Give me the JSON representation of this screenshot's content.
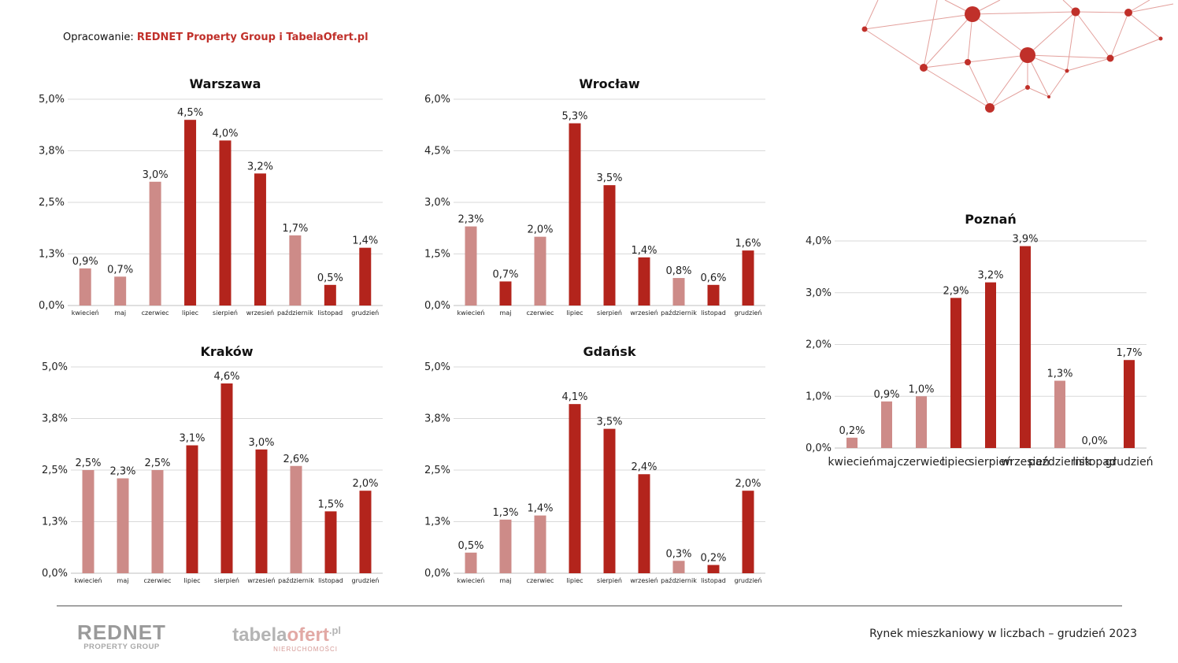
{
  "credit": {
    "prefix": "Opracowanie: ",
    "org": "REDNET Property Group i TabelaOfert.pl"
  },
  "footer": {
    "text": "Rynek mieszkaniowy w liczbach – grudzień  2023",
    "logo_rednet_big": "REDNET",
    "logo_rednet_small": "PROPERTY GROUP",
    "logo_tabela_part1": "tabela",
    "logo_tabela_part2": "ofert",
    "logo_tabela_pl": ".pl",
    "logo_tabela_small": "NIERUCHOMOŚCI"
  },
  "colors": {
    "dark": "#b3241c",
    "light": "#cd8b88",
    "accent": "#c0302a",
    "grid": "#d9d9d9"
  },
  "chart_data": [
    {
      "type": "bar",
      "title": "Warszawa",
      "categories": [
        "kwiecień",
        "maj",
        "czerwiec",
        "lipiec",
        "sierpień",
        "wrzesień",
        "październik",
        "listopad",
        "grudzień"
      ],
      "values": [
        0.9,
        0.7,
        3.0,
        4.5,
        4.0,
        3.2,
        1.7,
        0.5,
        1.4
      ],
      "labels": [
        "0,9%",
        "0,7%",
        "3,0%",
        "4,5%",
        "4,0%",
        "3,2%",
        "1,7%",
        "0,5%",
        "1,4%"
      ],
      "shade": [
        "light",
        "light",
        "light",
        "dark",
        "dark",
        "dark",
        "light",
        "dark",
        "dark"
      ],
      "yticks": [
        "0,0%",
        "1,3%",
        "2,5%",
        "3,8%",
        "5,0%"
      ],
      "ylim": [
        0,
        5.0
      ],
      "grid": true
    },
    {
      "type": "bar",
      "title": "Wrocław",
      "categories": [
        "kwiecień",
        "maj",
        "czerwiec",
        "lipiec",
        "sierpień",
        "wrzesień",
        "październik",
        "listopad",
        "grudzień"
      ],
      "values": [
        2.3,
        0.7,
        2.0,
        5.3,
        3.5,
        1.4,
        0.8,
        0.6,
        1.6
      ],
      "labels": [
        "2,3%",
        "0,7%",
        "2,0%",
        "5,3%",
        "3,5%",
        "1,4%",
        "0,8%",
        "0,6%",
        "1,6%"
      ],
      "shade": [
        "light",
        "dark",
        "light",
        "dark",
        "dark",
        "dark",
        "light",
        "dark",
        "dark"
      ],
      "yticks": [
        "0,0%",
        "1,5%",
        "3,0%",
        "4,5%",
        "6,0%"
      ],
      "ylim": [
        0,
        6.0
      ],
      "grid": true
    },
    {
      "type": "bar",
      "title": "Kraków",
      "categories": [
        "kwiecień",
        "maj",
        "czerwiec",
        "lipiec",
        "sierpień",
        "wrzesień",
        "październik",
        "listopad",
        "grudzień"
      ],
      "values": [
        2.5,
        2.3,
        2.5,
        3.1,
        4.6,
        3.0,
        2.6,
        1.5,
        2.0
      ],
      "labels": [
        "2,5%",
        "2,3%",
        "2,5%",
        "3,1%",
        "4,6%",
        "3,0%",
        "2,6%",
        "1,5%",
        "2,0%"
      ],
      "shade": [
        "light",
        "light",
        "light",
        "dark",
        "dark",
        "dark",
        "light",
        "dark",
        "dark"
      ],
      "yticks": [
        "0,0%",
        "1,3%",
        "2,5%",
        "3,8%",
        "5,0%"
      ],
      "ylim": [
        0,
        5.0
      ],
      "grid": true
    },
    {
      "type": "bar",
      "title": "Gdańsk",
      "categories": [
        "kwiecień",
        "maj",
        "czerwiec",
        "lipiec",
        "sierpień",
        "wrzesień",
        "październik",
        "listopad",
        "grudzień"
      ],
      "values": [
        0.5,
        1.3,
        1.4,
        4.1,
        3.5,
        2.4,
        0.3,
        0.2,
        2.0
      ],
      "labels": [
        "0,5%",
        "1,3%",
        "1,4%",
        "4,1%",
        "3,5%",
        "2,4%",
        "0,3%",
        "0,2%",
        "2,0%"
      ],
      "shade": [
        "light",
        "light",
        "light",
        "dark",
        "dark",
        "dark",
        "light",
        "dark",
        "dark"
      ],
      "yticks": [
        "0,0%",
        "1,3%",
        "2,5%",
        "3,8%",
        "5,0%"
      ],
      "ylim": [
        0,
        5.0
      ],
      "grid": true
    },
    {
      "type": "bar",
      "title": "Poznań",
      "categories": [
        "kwiecień",
        "maj",
        "czerwiec",
        "lipiec",
        "sierpień",
        "wrzesień",
        "październik",
        "listopad",
        "grudzień"
      ],
      "values": [
        0.2,
        0.9,
        1.0,
        2.9,
        3.2,
        3.9,
        1.3,
        0.0,
        1.7
      ],
      "labels": [
        "0,2%",
        "0,9%",
        "1,0%",
        "2,9%",
        "3,2%",
        "3,9%",
        "1,3%",
        "0,0%",
        "1,7%"
      ],
      "shade": [
        "light",
        "light",
        "light",
        "dark",
        "dark",
        "dark",
        "light",
        "dark",
        "dark"
      ],
      "yticks": [
        "0,0%",
        "1,0%",
        "2,0%",
        "3,0%",
        "4,0%"
      ],
      "ylim": [
        0,
        4.0
      ],
      "grid": true
    }
  ]
}
